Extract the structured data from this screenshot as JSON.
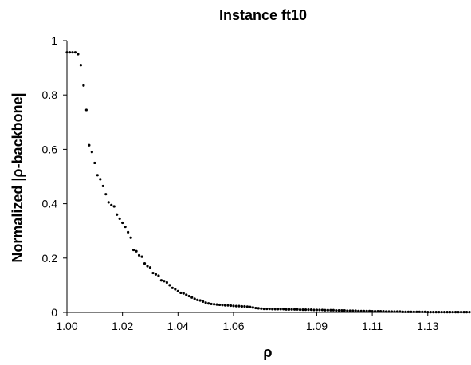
{
  "chart_data": {
    "type": "scatter",
    "title": "Instance ft10",
    "xlabel": "ρ",
    "ylabel": "Normalized |ρ-backbone|",
    "xlim": [
      1.0,
      1.145
    ],
    "ylim": [
      0,
      1
    ],
    "x_ticks": [
      1.0,
      1.02,
      1.04,
      1.06,
      1.09,
      1.11,
      1.13
    ],
    "x_tick_labels": [
      "1.00",
      "1.02",
      "1.04",
      "1.06",
      "1.09",
      "1.11",
      "1.13"
    ],
    "y_ticks": [
      0,
      0.2,
      0.4,
      0.6,
      0.8,
      1
    ],
    "y_tick_labels": [
      "0",
      "0.2",
      "0.4",
      "0.6",
      "0.8",
      "1"
    ],
    "grid": false,
    "legend": "none",
    "marker_color": "#000000",
    "series": [
      {
        "x": [
          1.0,
          1.001,
          1.002,
          1.003,
          1.004,
          1.005,
          1.006,
          1.007,
          1.008,
          1.009,
          1.01,
          1.011,
          1.012,
          1.013,
          1.014,
          1.015,
          1.016,
          1.017,
          1.018,
          1.019,
          1.02,
          1.021,
          1.022,
          1.023,
          1.024,
          1.025,
          1.026,
          1.027,
          1.028,
          1.029,
          1.03,
          1.031,
          1.032,
          1.033,
          1.034,
          1.035,
          1.036,
          1.037,
          1.038,
          1.039,
          1.04,
          1.041,
          1.042,
          1.043,
          1.044,
          1.045,
          1.046,
          1.047,
          1.048,
          1.049,
          1.05,
          1.051,
          1.052,
          1.053,
          1.054,
          1.055,
          1.056,
          1.057,
          1.058,
          1.059,
          1.06,
          1.061,
          1.062,
          1.063,
          1.064,
          1.065,
          1.066,
          1.067,
          1.068,
          1.069,
          1.07,
          1.071,
          1.072,
          1.073,
          1.074,
          1.075,
          1.076,
          1.077,
          1.078,
          1.079,
          1.08,
          1.081,
          1.082,
          1.083,
          1.084,
          1.085,
          1.086,
          1.087,
          1.088,
          1.089,
          1.09,
          1.091,
          1.092,
          1.093,
          1.094,
          1.095,
          1.096,
          1.097,
          1.098,
          1.099,
          1.1,
          1.101,
          1.102,
          1.103,
          1.104,
          1.105,
          1.106,
          1.107,
          1.108,
          1.109,
          1.11,
          1.111,
          1.112,
          1.113,
          1.114,
          1.115,
          1.116,
          1.117,
          1.118,
          1.119,
          1.12,
          1.121,
          1.122,
          1.123,
          1.124,
          1.125,
          1.126,
          1.127,
          1.128,
          1.129,
          1.13,
          1.131,
          1.132,
          1.133,
          1.134,
          1.135,
          1.136,
          1.137,
          1.138,
          1.139,
          1.14,
          1.141,
          1.142,
          1.143,
          1.144,
          1.145
        ],
        "y": [
          0.957,
          0.957,
          0.957,
          0.957,
          0.95,
          0.91,
          0.835,
          0.745,
          0.615,
          0.59,
          0.55,
          0.505,
          0.49,
          0.465,
          0.435,
          0.405,
          0.395,
          0.39,
          0.36,
          0.345,
          0.33,
          0.315,
          0.295,
          0.275,
          0.23,
          0.225,
          0.21,
          0.205,
          0.18,
          0.17,
          0.165,
          0.145,
          0.14,
          0.135,
          0.118,
          0.115,
          0.11,
          0.1,
          0.09,
          0.085,
          0.078,
          0.072,
          0.07,
          0.065,
          0.06,
          0.055,
          0.05,
          0.046,
          0.044,
          0.04,
          0.036,
          0.033,
          0.031,
          0.03,
          0.029,
          0.028,
          0.027,
          0.026,
          0.026,
          0.025,
          0.024,
          0.023,
          0.023,
          0.022,
          0.022,
          0.021,
          0.02,
          0.018,
          0.016,
          0.015,
          0.014,
          0.013,
          0.013,
          0.013,
          0.012,
          0.012,
          0.012,
          0.012,
          0.012,
          0.011,
          0.011,
          0.011,
          0.011,
          0.011,
          0.01,
          0.01,
          0.01,
          0.01,
          0.01,
          0.009,
          0.009,
          0.009,
          0.009,
          0.008,
          0.008,
          0.008,
          0.008,
          0.007,
          0.007,
          0.007,
          0.007,
          0.006,
          0.006,
          0.006,
          0.006,
          0.005,
          0.005,
          0.005,
          0.005,
          0.005,
          0.004,
          0.004,
          0.004,
          0.004,
          0.004,
          0.003,
          0.003,
          0.003,
          0.003,
          0.003,
          0.003,
          0.002,
          0.002,
          0.002,
          0.002,
          0.002,
          0.002,
          0.002,
          0.002,
          0.002,
          0.001,
          0.001,
          0.001,
          0.001,
          0.001,
          0.001,
          0.001,
          0.001,
          0.001,
          0.001,
          0.001,
          0.001,
          0.001,
          0.001,
          0.001,
          0.001
        ]
      }
    ]
  }
}
